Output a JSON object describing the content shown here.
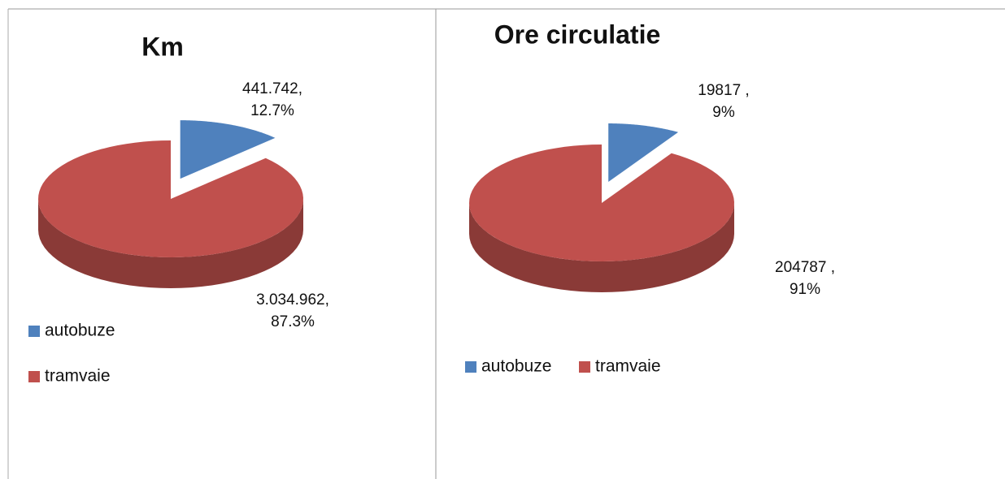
{
  "chart_data": [
    {
      "type": "pie",
      "title": "Km",
      "categories": [
        "autobuze",
        "tramvaie"
      ],
      "values": [
        441742,
        3034962
      ],
      "value_labels": [
        [
          "441.742,",
          "12.7%"
        ],
        [
          "3.034.962,",
          "87.3%"
        ]
      ],
      "colors": [
        "#4f81bd",
        "#c0504d"
      ],
      "legend": "left",
      "exploded": 0
    },
    {
      "type": "pie",
      "title": "Ore circulatie",
      "categories": [
        "autobuze",
        "tramvaie"
      ],
      "values": [
        19817,
        204787
      ],
      "value_labels": [
        [
          "19817 ,",
          "9%"
        ],
        [
          "204787 ,",
          "91%"
        ]
      ],
      "colors": [
        "#4f81bd",
        "#c0504d"
      ],
      "legend": "bottom",
      "exploded": 0
    }
  ]
}
